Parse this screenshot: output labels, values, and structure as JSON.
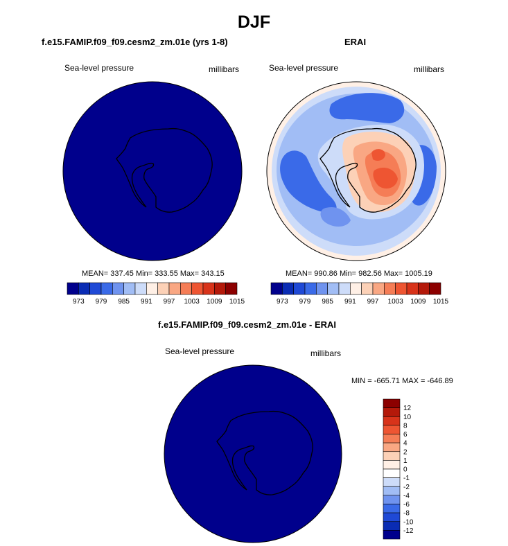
{
  "season": "DJF",
  "variable": "Sea-level pressure",
  "units": "millibars",
  "panels": {
    "model": {
      "title": "f.e15.FAMIP.f09_f09.cesm2_zm.01e (yrs 1-8)",
      "left_label": "Sea-level pressure",
      "right_label": "millibars",
      "stats": "MEAN= 337.45  Min= 333.55  Max= 343.15"
    },
    "obs": {
      "title": "ERAI",
      "left_label": "Sea-level pressure",
      "right_label": "millibars",
      "stats": "MEAN= 990.86  Min= 982.56  Max= 1005.19"
    },
    "diff": {
      "title": "f.e15.FAMIP.f09_f09.cesm2_zm.01e - ERAI",
      "left_label": "Sea-level pressure",
      "right_label": "millibars",
      "stats": "MIN = -665.71 MAX = -646.89"
    }
  },
  "colors": {
    "field_colors": [
      "#00008c",
      "#0a2cb4",
      "#1f49d6",
      "#3a6ae8",
      "#6f93ef",
      "#a1bdf5",
      "#cddcf9",
      "#fff0e6",
      "#fcd1b7",
      "#f9a783",
      "#f57d56",
      "#ee5532",
      "#d8331a",
      "#b4190a",
      "#8c0000"
    ],
    "diff_colors": [
      "#00008c",
      "#0a2cb4",
      "#1f49d6",
      "#3a6ae8",
      "#6f93ef",
      "#a1bdf5",
      "#cddcf9",
      "#ffffff",
      "#fff0e6",
      "#fcd1b7",
      "#f9a783",
      "#f57d56",
      "#ee5532",
      "#d8331a",
      "#b4190a",
      "#8c0000"
    ],
    "saturated_fill": "#00008c"
  },
  "colorbars": {
    "field_labels": [
      "973",
      "979",
      "985",
      "991",
      "997",
      "1003",
      "1009",
      "1015"
    ],
    "diff_labels": [
      "12",
      "10",
      "8",
      "6",
      "4",
      "2",
      "1",
      "0",
      "-1",
      "-2",
      "-4",
      "-6",
      "-8",
      "-10",
      "-12"
    ]
  }
}
